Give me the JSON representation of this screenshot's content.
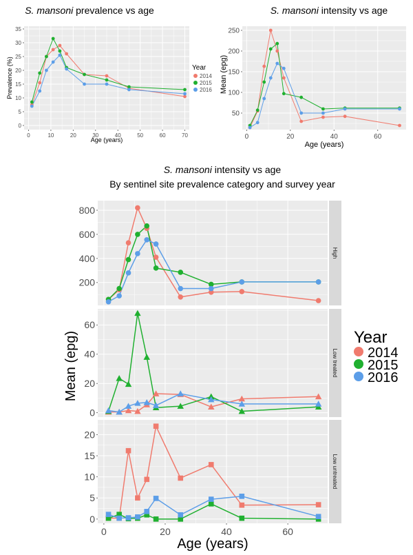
{
  "colors": {
    "2014": "#f07b6e",
    "2015": "#20b030",
    "2016": "#5c9ee8",
    "panel_bg": "#ebebeb",
    "grid": "#ffffff",
    "strip_bg": "#d9d9d9"
  },
  "legend_title": "Year",
  "chart_data": [
    {
      "type": "line",
      "title_italic": "S. mansoni",
      "title_rest": " prevalence vs age",
      "xlabel": "Age (years)",
      "ylabel": "Prevalence (%)",
      "xlim": [
        -2,
        72
      ],
      "ylim": [
        -1.5,
        36
      ],
      "xticks": [
        0,
        10,
        20,
        30,
        40,
        50,
        60,
        70
      ],
      "yticks": [
        0,
        5,
        10,
        15,
        20,
        25,
        30,
        35
      ],
      "grid": true,
      "legend": {
        "title": "Year",
        "entries": [
          "2014",
          "2015",
          "2016"
        ],
        "placement": "right"
      },
      "series": [
        {
          "name": "2014",
          "points": [
            [
              1.5,
              7.5
            ],
            [
              5,
              15.5
            ],
            [
              8,
              25
            ],
            [
              11,
              27.5
            ],
            [
              14,
              29
            ],
            [
              17,
              26
            ],
            [
              25,
              18.5
            ],
            [
              35,
              18
            ],
            [
              45,
              13.5
            ],
            [
              70,
              10.5
            ]
          ]
        },
        {
          "name": "2015",
          "points": [
            [
              1.5,
              8.5
            ],
            [
              5,
              19
            ],
            [
              8,
              25
            ],
            [
              11,
              31.5
            ],
            [
              14,
              27
            ],
            [
              17,
              21
            ],
            [
              25,
              18.5
            ],
            [
              35,
              16.5
            ],
            [
              45,
              14
            ],
            [
              70,
              13
            ]
          ]
        },
        {
          "name": "2016",
          "points": [
            [
              1.5,
              7
            ],
            [
              5,
              12.5
            ],
            [
              8,
              20
            ],
            [
              11,
              23
            ],
            [
              14,
              25.5
            ],
            [
              17,
              20.5
            ],
            [
              25,
              15
            ],
            [
              35,
              15
            ],
            [
              45,
              13
            ],
            [
              70,
              11.5
            ]
          ]
        }
      ]
    },
    {
      "type": "line",
      "title_italic": "S. mansoni",
      "title_rest": " intensity vs age",
      "xlabel": "Age (years)",
      "ylabel": "Mean (epg)",
      "xlim": [
        -2,
        73
      ],
      "ylim": [
        10,
        260
      ],
      "xticks": [
        0,
        20,
        40,
        60
      ],
      "yticks": [
        50,
        100,
        150,
        200,
        250
      ],
      "grid": true,
      "series": [
        {
          "name": "2014",
          "points": [
            [
              1.5,
              15
            ],
            [
              5,
              55
            ],
            [
              8,
              163
            ],
            [
              11,
              250
            ],
            [
              14,
              200
            ],
            [
              17,
              135
            ],
            [
              25,
              30
            ],
            [
              35,
              40
            ],
            [
              45,
              42
            ],
            [
              70,
              20
            ]
          ]
        },
        {
          "name": "2015",
          "points": [
            [
              1.5,
              20
            ],
            [
              5,
              57
            ],
            [
              8,
              125
            ],
            [
              11,
              205
            ],
            [
              14,
              218
            ],
            [
              17,
              97
            ],
            [
              25,
              88
            ],
            [
              35,
              60
            ],
            [
              45,
              62
            ],
            [
              70,
              62
            ]
          ]
        },
        {
          "name": "2016",
          "points": [
            [
              1.5,
              15
            ],
            [
              5,
              27
            ],
            [
              8,
              85
            ],
            [
              11,
              135
            ],
            [
              14,
              170
            ],
            [
              17,
              158
            ],
            [
              25,
              50
            ],
            [
              35,
              50
            ],
            [
              45,
              60
            ],
            [
              70,
              60
            ]
          ]
        }
      ]
    },
    {
      "type": "line",
      "title_line1_italic": "S. mansoni",
      "title_line1_rest": " intensity vs age",
      "title_line2": "By sentinel site prevalence category and survey year",
      "xlabel": "Age (years)",
      "ylabel": "Mean (epg)",
      "xlim": [
        -2,
        73
      ],
      "xticks": [
        0,
        20,
        40,
        60
      ],
      "grid": true,
      "legend": {
        "title": "Year",
        "entries": [
          "2014",
          "2015",
          "2016"
        ],
        "placement": "right"
      },
      "facets": [
        {
          "label": "High",
          "marker": "circle",
          "ylim": [
            10,
            880
          ],
          "yticks": [
            200,
            400,
            600,
            800
          ],
          "series": [
            {
              "name": "2014",
              "points": [
                [
                  1.5,
                  60
                ],
                [
                  5,
                  140
                ],
                [
                  8,
                  530
                ],
                [
                  11,
                  820
                ],
                [
                  14,
                  650
                ],
                [
                  17,
                  410
                ],
                [
                  25,
                  80
                ],
                [
                  35,
                  120
                ],
                [
                  45,
                  125
                ],
                [
                  70,
                  50
                ]
              ]
            },
            {
              "name": "2015",
              "points": [
                [
                  1.5,
                  60
                ],
                [
                  5,
                  150
                ],
                [
                  8,
                  390
                ],
                [
                  11,
                  600
                ],
                [
                  14,
                  670
                ],
                [
                  17,
                  320
                ],
                [
                  25,
                  285
                ],
                [
                  35,
                  185
                ],
                [
                  45,
                  205
                ],
                [
                  70,
                  205
                ]
              ]
            },
            {
              "name": "2016",
              "points": [
                [
                  1.5,
                  40
                ],
                [
                  5,
                  90
                ],
                [
                  8,
                  280
                ],
                [
                  11,
                  440
                ],
                [
                  14,
                  555
                ],
                [
                  17,
                  520
                ],
                [
                  25,
                  150
                ],
                [
                  35,
                  150
                ],
                [
                  45,
                  205
                ],
                [
                  70,
                  205
                ]
              ]
            }
          ]
        },
        {
          "label": "Low treated",
          "marker": "triangle",
          "ylim": [
            -3,
            71
          ],
          "yticks": [
            0,
            20,
            40,
            60
          ],
          "series": [
            {
              "name": "2014",
              "points": [
                [
                  1.5,
                  0.5
                ],
                [
                  5,
                  0.5
                ],
                [
                  8,
                  1.5
                ],
                [
                  11,
                  1
                ],
                [
                  14,
                  5.5
                ],
                [
                  17,
                  13
                ],
                [
                  25,
                  12.5
                ],
                [
                  35,
                  4
                ],
                [
                  45,
                  9.5
                ],
                [
                  70,
                  11
                ]
              ]
            },
            {
              "name": "2015",
              "points": [
                [
                  1.5,
                  1
                ],
                [
                  5,
                  23.5
                ],
                [
                  8,
                  19.5
                ],
                [
                  11,
                  68
                ],
                [
                  14,
                  38
                ],
                [
                  17,
                  3.5
                ],
                [
                  25,
                  4.5
                ],
                [
                  35,
                  11
                ],
                [
                  45,
                  1
                ],
                [
                  70,
                  4
                ]
              ]
            },
            {
              "name": "2016",
              "points": [
                [
                  1.5,
                  1.5
                ],
                [
                  5,
                  0.5
                ],
                [
                  8,
                  4.5
                ],
                [
                  11,
                  6.5
                ],
                [
                  14,
                  7
                ],
                [
                  17,
                  5
                ],
                [
                  25,
                  13
                ],
                [
                  35,
                  9
                ],
                [
                  45,
                  6
                ],
                [
                  70,
                  6
                ]
              ]
            }
          ]
        },
        {
          "label": "Low untreated",
          "marker": "square",
          "ylim": [
            -1,
            23.5
          ],
          "yticks": [
            0,
            5,
            10,
            15,
            20
          ],
          "series": [
            {
              "name": "2014",
              "points": [
                [
                  1.5,
                  0.2
                ],
                [
                  5,
                  0.2
                ],
                [
                  8,
                  16.2
                ],
                [
                  11,
                  5
                ],
                [
                  14,
                  9.4
                ],
                [
                  17,
                  22
                ],
                [
                  25,
                  9.7
                ],
                [
                  35,
                  12.9
                ],
                [
                  45,
                  3.3
                ],
                [
                  70,
                  3.4
                ]
              ]
            },
            {
              "name": "2015",
              "points": [
                [
                  1.5,
                  0.2
                ],
                [
                  5,
                  1.1
                ],
                [
                  8,
                  0.1
                ],
                [
                  11,
                  0.2
                ],
                [
                  14,
                  1
                ],
                [
                  17,
                  0
                ],
                [
                  25,
                  0
                ],
                [
                  35,
                  3.6
                ],
                [
                  45,
                  0.2
                ],
                [
                  70,
                  0
                ]
              ]
            },
            {
              "name": "2016",
              "points": [
                [
                  1.5,
                  1.1
                ],
                [
                  5,
                  0.2
                ],
                [
                  8,
                  0.3
                ],
                [
                  11,
                  0.5
                ],
                [
                  14,
                  1.8
                ],
                [
                  17,
                  4.9
                ],
                [
                  25,
                  1
                ],
                [
                  35,
                  4.7
                ],
                [
                  45,
                  5.4
                ],
                [
                  70,
                  0.6
                ]
              ]
            }
          ]
        }
      ]
    }
  ]
}
